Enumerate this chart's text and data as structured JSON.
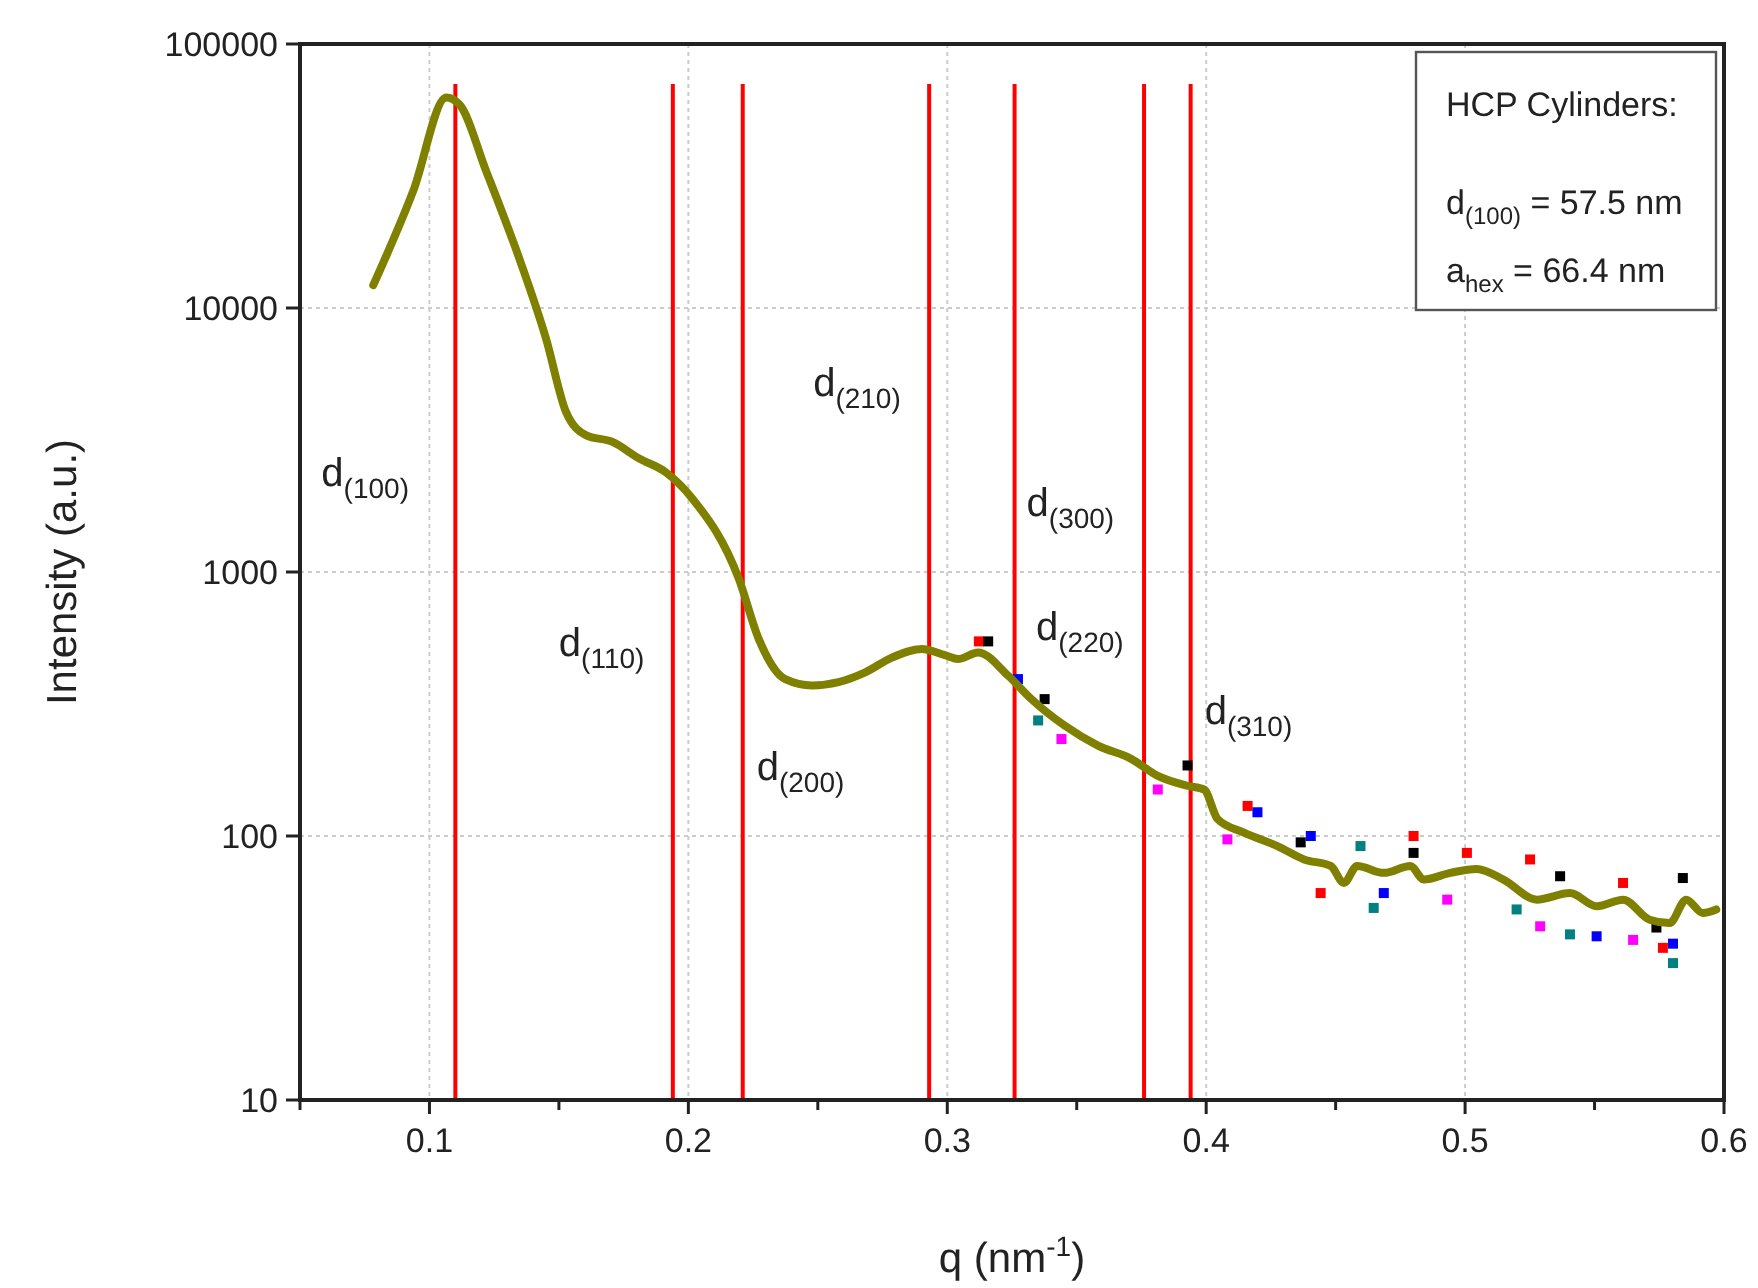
{
  "chart_data": {
    "type": "line",
    "xlabel": "q  (nm$^{-1}$)",
    "ylabel": "Intensity  (a.u.)",
    "log": "y",
    "grid": true,
    "xlim": [
      0.05,
      0.6
    ],
    "xticks": [
      {
        "value": 0.05,
        "label": null
      },
      0.1,
      {
        "value": 0.15,
        "label": null
      },
      0.2,
      {
        "value": 0.25,
        "label": null
      },
      0.3,
      {
        "value": 0.35,
        "label": null
      },
      0.4,
      {
        "value": 0.45,
        "label": null
      },
      0.5,
      {
        "value": 0.55,
        "label": null
      },
      0.6
    ],
    "ylim": [
      10,
      100000
    ],
    "yticks": [
      10,
      100,
      1000,
      10000,
      100000
    ],
    "series": [
      {
        "type": "scatter",
        "marker": "square",
        "color": "#ff0000",
        "x": [
          0.3122,
          0.416,
          0.4442,
          0.4801,
          0.5007,
          0.5251,
          0.561,
          0.5764
        ],
        "values": [
          546,
          130,
          60.8,
          100,
          86.3,
          81.5,
          66.4,
          37.7
        ]
      },
      {
        "type": "scatter",
        "marker": "square",
        "color": "#0000ff",
        "x": [
          0.3273,
          0.4198,
          0.4404,
          0.4686,
          0.5508,
          0.5803
        ],
        "values": [
          393,
          123,
          100,
          60.8,
          41.7,
          39.1
        ]
      },
      {
        "type": "scatter",
        "marker": "square",
        "color": "#ff00ff",
        "x": [
          0.3441,
          0.3813,
          0.4082,
          0.4931,
          0.529,
          0.5649
        ],
        "values": [
          233,
          150,
          97.1,
          57.4,
          45.5,
          40.4
        ]
      },
      {
        "type": "scatter",
        "marker": "square",
        "color": "#008080",
        "x": [
          0.3351,
          0.4596,
          0.4647,
          0.5199,
          0.5405,
          0.5803
        ],
        "values": [
          274,
          91.6,
          53.4,
          52.7,
          42.4,
          33.0
        ]
      },
      {
        "type": "scatter",
        "marker": "square",
        "color": "#000000",
        "x": [
          0.3158,
          0.3376,
          0.3928,
          0.4365,
          0.4801,
          0.5367,
          0.5739,
          0.5841
        ],
        "values": [
          546,
          330,
          185,
          94.6,
          86.3,
          70.4,
          45.0,
          69.3
        ]
      },
      {
        "marker": "none",
        "color": "#808000",
        "x": [
          0.0783,
          0.0937,
          0.1065,
          0.1116,
          0.1219,
          0.1347,
          0.145,
          0.1527,
          0.1604,
          0.1707,
          0.181,
          0.1912,
          0.2015,
          0.2195,
          0.2272,
          0.2374,
          0.2478,
          0.258,
          0.2683,
          0.2786,
          0.2901,
          0.2991,
          0.3042,
          0.3119,
          0.3235,
          0.3325,
          0.3453,
          0.3582,
          0.371,
          0.3813,
          0.3928,
          0.3992,
          0.4044,
          0.4146,
          0.4275,
          0.4378,
          0.4481,
          0.4532,
          0.4583,
          0.4686,
          0.4789,
          0.484,
          0.4943,
          0.5045,
          0.5148,
          0.5277,
          0.5405,
          0.5508,
          0.561,
          0.5713,
          0.579,
          0.5854,
          0.5918,
          0.597
        ],
        "values": [
          12200,
          27700,
          62700,
          59000,
          33000,
          15400,
          7670,
          4050,
          3300,
          3110,
          2690,
          2390,
          1900,
          942,
          557,
          393,
          372,
          383,
          417,
          474,
          511,
          484,
          468,
          496,
          405,
          330,
          262,
          220,
          196,
          169,
          155,
          150,
          116,
          103,
          91.6,
          81.5,
          77,
          66.4,
          77,
          72.5,
          77,
          68.4,
          72.5,
          75,
          68.4,
          57.4,
          60.8,
          54.2,
          57.4,
          48.2,
          46.8,
          57.4,
          51.1,
          52.7
        ]
      }
    ],
    "ref_lines": [
      {
        "axis": "x",
        "value": 0.11,
        "color": "#ff0000",
        "label": "d$_{(100)}$"
      },
      {
        "axis": "x",
        "value": 0.194,
        "color": "#ff0000",
        "label": "d$_{(110)}$"
      },
      {
        "axis": "x",
        "value": 0.221,
        "color": "#ff0000",
        "label": "d$_{(200)}$"
      },
      {
        "axis": "x",
        "value": 0.293,
        "color": "#ff0000",
        "label": "d$_{(210)}$"
      },
      {
        "axis": "x",
        "value": 0.326,
        "color": "#ff0000",
        "label": "d$_{(300)}$"
      },
      {
        "axis": "x",
        "value": 0.376,
        "color": "#ff0000",
        "label": "d$_{(220)}$"
      },
      {
        "axis": "x",
        "value": 0.394,
        "color": "#ff0000",
        "label": "d$_{(310)}$"
      }
    ],
    "annotations": [
      "HCP Cylinders:",
      "d$_{(100)}$ = 57.5 nm",
      "a$_{hex}$ = 66.4 nm"
    ]
  }
}
